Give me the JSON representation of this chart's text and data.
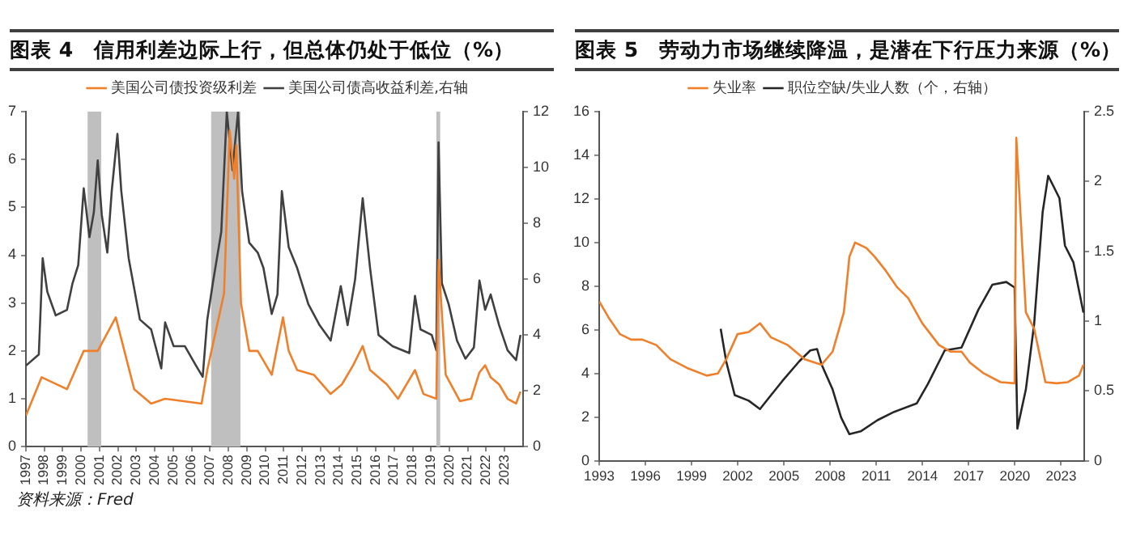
{
  "chart_data": [
    {
      "type": "line",
      "title": "图表 4　信用利差边际上行，但总体仍处于低位（%）",
      "legend": "top",
      "annotations": [
        "资料来源：Fred"
      ],
      "xlim": [
        1997,
        2024
      ],
      "xticks": [
        1997,
        1998,
        1999,
        2000,
        2001,
        2002,
        2003,
        2004,
        2005,
        2006,
        2007,
        2008,
        2009,
        2010,
        2011,
        2012,
        2013,
        2014,
        2015,
        2016,
        2017,
        2018,
        2019,
        2020,
        2021,
        2022,
        2023
      ],
      "ylim": [
        0,
        7
      ],
      "yticks": [
        0,
        1,
        2,
        3,
        4,
        5,
        6,
        7
      ],
      "y2lim": [
        0,
        12
      ],
      "y2ticks": [
        0,
        2,
        4,
        6,
        8,
        10,
        12
      ],
      "bands": [
        {
          "axis": "x",
          "from": 2000.35,
          "to": 2001.09,
          "color": "#bfbfbf"
        },
        {
          "axis": "x",
          "from": 2007.06,
          "to": 2008.65,
          "color": "#bfbfbf"
        },
        {
          "axis": "x",
          "from": 2019.29,
          "to": 2019.5,
          "color": "#bfbfbf"
        }
      ],
      "series": [
        {
          "name": "美国公司债投资级利差",
          "color": "#f07f2a",
          "x": [
            1997.0,
            1997.85,
            1999.23,
            2000.14,
            2000.9,
            2001.88,
            2002.88,
            2003.8,
            2004.56,
            2006.54,
            2006.85,
            2007.76,
            2008.07,
            2008.31,
            2008.43,
            2008.68,
            2009.13,
            2009.59,
            2010.35,
            2010.96,
            2011.27,
            2011.73,
            2012.64,
            2013.55,
            2014.16,
            2014.77,
            2015.29,
            2015.69,
            2016.6,
            2017.21,
            2018.13,
            2018.59,
            2019.29,
            2019.41,
            2019.8,
            2020.57,
            2021.18,
            2021.63,
            2021.94,
            2022.24,
            2022.7,
            2023.16,
            2023.62,
            2023.86
          ],
          "values": [
            0.65,
            1.45,
            1.2,
            2.0,
            2.0,
            2.7,
            1.2,
            0.9,
            1.0,
            0.9,
            1.6,
            3.2,
            6.6,
            5.6,
            6.3,
            3.0,
            2.0,
            2.0,
            1.5,
            2.7,
            2.0,
            1.6,
            1.5,
            1.1,
            1.3,
            1.7,
            2.1,
            1.6,
            1.3,
            1.0,
            1.6,
            1.1,
            1.0,
            3.9,
            1.5,
            0.95,
            1.0,
            1.55,
            1.7,
            1.45,
            1.3,
            1.0,
            0.9,
            1.15
          ]
        },
        {
          "name": "美国公司债高收益利差,右轴",
          "color": "#404040",
          "axis": "y2",
          "x": [
            1997.0,
            1997.7,
            1997.91,
            1998.16,
            1998.62,
            1999.23,
            1999.53,
            1999.84,
            2000.14,
            2000.45,
            2000.69,
            2000.9,
            2001.12,
            2001.42,
            2001.66,
            2001.97,
            2002.18,
            2002.58,
            2003.19,
            2003.8,
            2004.35,
            2004.56,
            2005.02,
            2005.63,
            2006.24,
            2006.6,
            2006.85,
            2007.15,
            2007.61,
            2007.91,
            2008.22,
            2008.52,
            2008.74,
            2009.13,
            2009.59,
            2009.9,
            2010.35,
            2010.66,
            2010.9,
            2011.27,
            2011.73,
            2012.34,
            2012.95,
            2013.55,
            2014.1,
            2014.47,
            2014.88,
            2015.29,
            2015.69,
            2016.15,
            2016.91,
            2017.82,
            2018.13,
            2018.43,
            2019.04,
            2019.29,
            2019.41,
            2019.59,
            2019.96,
            2020.41,
            2020.87,
            2021.33,
            2021.63,
            2021.94,
            2022.24,
            2022.7,
            2023.16,
            2023.62,
            2023.86
          ],
          "values": [
            2.9,
            3.3,
            6.75,
            5.55,
            4.7,
            4.9,
            5.85,
            6.5,
            9.25,
            7.5,
            8.4,
            10.25,
            8.3,
            6.95,
            9.15,
            11.2,
            9.15,
            6.75,
            4.55,
            4.2,
            2.8,
            4.45,
            3.6,
            3.6,
            2.9,
            2.5,
            4.55,
            5.85,
            7.7,
            12,
            9.9,
            12,
            9.15,
            7.3,
            6.95,
            6.4,
            4.75,
            5.45,
            9.15,
            7.15,
            6.4,
            5.1,
            4.35,
            3.8,
            5.75,
            4.35,
            6.0,
            8.9,
            6.4,
            4.0,
            3.6,
            3.35,
            5.4,
            4.2,
            4.0,
            3.45,
            10.9,
            5.85,
            5.1,
            3.8,
            3.15,
            3.55,
            5.95,
            4.9,
            5.45,
            4.35,
            3.45,
            3.1,
            4.0
          ]
        }
      ]
    },
    {
      "type": "line",
      "title": "图表 5　劳动力市场继续降温，是潜在下行压力来源（%）",
      "legend": "top",
      "xlim": [
        1993,
        2024.5
      ],
      "xticks": [
        1993,
        1996,
        1999,
        2002,
        2005,
        2008,
        2011,
        2014,
        2017,
        2020,
        2023
      ],
      "ylim": [
        0,
        16
      ],
      "yticks": [
        0,
        2,
        4,
        6,
        8,
        10,
        12,
        14,
        16
      ],
      "y2lim": [
        0,
        2.5
      ],
      "y2ticks": [
        0,
        0.5,
        1,
        1.5,
        2,
        2.5
      ],
      "series": [
        {
          "name": "失业率",
          "color": "#f07f2a",
          "x": [
            1993.0,
            1993.62,
            1994.35,
            1995.07,
            1995.8,
            1996.71,
            1997.62,
            1998.71,
            1999.98,
            2000.71,
            2001.25,
            2001.98,
            2002.71,
            2003.44,
            2004.16,
            2005.25,
            2006.35,
            2007.44,
            2008.16,
            2008.89,
            2009.25,
            2009.62,
            2010.35,
            2010.89,
            2011.62,
            2012.35,
            2013.07,
            2013.98,
            2015.07,
            2015.8,
            2016.53,
            2017.07,
            2017.98,
            2019.07,
            2019.98,
            2020.09,
            2020.71,
            2021.25,
            2021.98,
            2022.71,
            2023.44,
            2024.16,
            2024.45
          ],
          "values": [
            7.3,
            6.55,
            5.8,
            5.55,
            5.55,
            5.3,
            4.65,
            4.25,
            3.9,
            4.0,
            4.65,
            5.8,
            5.9,
            6.3,
            5.65,
            5.3,
            4.65,
            4.4,
            5.0,
            6.8,
            9.35,
            10.0,
            9.75,
            9.35,
            8.7,
            7.95,
            7.45,
            6.3,
            5.3,
            5.0,
            5.0,
            4.5,
            4.0,
            3.6,
            3.55,
            14.8,
            6.8,
            6.05,
            3.6,
            3.55,
            3.6,
            3.9,
            4.4
          ]
        },
        {
          "name": "职位空缺/失业人数（个，右轴）",
          "color": "#262626",
          "axis": "y2",
          "x": [
            2000.89,
            2001.25,
            2001.8,
            2002.71,
            2003.44,
            2004.16,
            2004.89,
            2005.98,
            2006.71,
            2007.15,
            2007.44,
            2008.16,
            2008.71,
            2009.25,
            2009.98,
            2011.07,
            2012.16,
            2013.62,
            2014.35,
            2015.44,
            2016.53,
            2017.62,
            2018.53,
            2019.44,
            2019.98,
            2020.16,
            2020.71,
            2021.25,
            2021.8,
            2022.16,
            2022.53,
            2022.89,
            2023.25,
            2023.8,
            2024.16,
            2024.45
          ],
          "values": [
            0.945,
            0.71,
            0.47,
            0.43,
            0.37,
            0.47,
            0.57,
            0.71,
            0.79,
            0.8,
            0.69,
            0.51,
            0.31,
            0.19,
            0.21,
            0.29,
            0.35,
            0.41,
            0.55,
            0.79,
            0.81,
            1.08,
            1.26,
            1.28,
            1.24,
            0.23,
            0.51,
            0.98,
            1.78,
            2.04,
            1.96,
            1.88,
            1.54,
            1.42,
            1.22,
            1.06
          ]
        }
      ]
    }
  ]
}
